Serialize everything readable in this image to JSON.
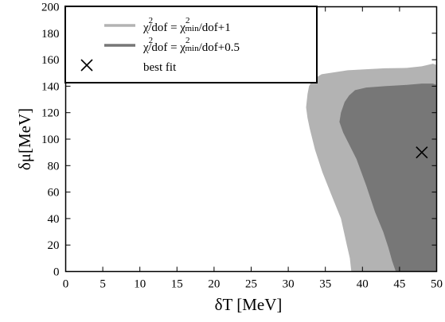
{
  "chart_data": {
    "type": "area",
    "xlabel": "δT [MeV]",
    "ylabel": "δμ[MeV]",
    "xlim": [
      0,
      50
    ],
    "ylim": [
      0,
      200
    ],
    "xticks": [
      "0",
      "5",
      "10",
      "15",
      "20",
      "25",
      "30",
      "35",
      "40",
      "45",
      "50"
    ],
    "yticks": [
      "0",
      "20",
      "40",
      "60",
      "80",
      "100",
      "120",
      "140",
      "160",
      "180",
      "200"
    ],
    "grid": false,
    "legend_position": "top-left",
    "series": [
      {
        "name": "χ²/dof = χ²min/dof+1",
        "color": "#b3b3b3",
        "polygon": [
          [
            38.5,
            0
          ],
          [
            38.3,
            10
          ],
          [
            37.9,
            20
          ],
          [
            37.1,
            40
          ],
          [
            35.8,
            58
          ],
          [
            34.6,
            75
          ],
          [
            33.6,
            92
          ],
          [
            32.9,
            108
          ],
          [
            32.6,
            116
          ],
          [
            32.4,
            124
          ],
          [
            32.6,
            134
          ],
          [
            32.8,
            140
          ],
          [
            33.3,
            145
          ],
          [
            34.5,
            149
          ],
          [
            38,
            152
          ],
          [
            43,
            153.5
          ],
          [
            46,
            153.8
          ],
          [
            48,
            155
          ],
          [
            49.5,
            157
          ],
          [
            50,
            156
          ],
          [
            50,
            0
          ]
        ]
      },
      {
        "name": "χ²/dof = χ²min/dof+0.5",
        "color": "#777777",
        "polygon": [
          [
            44.5,
            0
          ],
          [
            44,
            8
          ],
          [
            43.5,
            18
          ],
          [
            42.8,
            30
          ],
          [
            41.7,
            45
          ],
          [
            40.5,
            65
          ],
          [
            39.2,
            85
          ],
          [
            37.4,
            105
          ],
          [
            36.9,
            113
          ],
          [
            37.1,
            120
          ],
          [
            37.6,
            128
          ],
          [
            38.2,
            133
          ],
          [
            39,
            137
          ],
          [
            40.5,
            139
          ],
          [
            43,
            140
          ],
          [
            46,
            141
          ],
          [
            48,
            142
          ],
          [
            49.5,
            142
          ],
          [
            50,
            141
          ],
          [
            50,
            0
          ]
        ]
      }
    ],
    "best_fit": {
      "name": "best fit",
      "x": 48.0,
      "y": 90.0,
      "marker": "×"
    }
  },
  "legend": {
    "entries": [
      {
        "id": "1",
        "lhs": "χ",
        "lhs_sup": "2",
        "mid": "/dof = χ",
        "mid_sup": "2",
        "mid_sub": "min",
        "rhs": "/dof+1"
      },
      {
        "id": "05",
        "lhs": "χ",
        "lhs_sup": "2",
        "mid": "/dof = χ",
        "mid_sup": "2",
        "mid_sub": "min",
        "rhs": "/dof+0.5"
      }
    ],
    "best_fit_label": "best fit"
  }
}
